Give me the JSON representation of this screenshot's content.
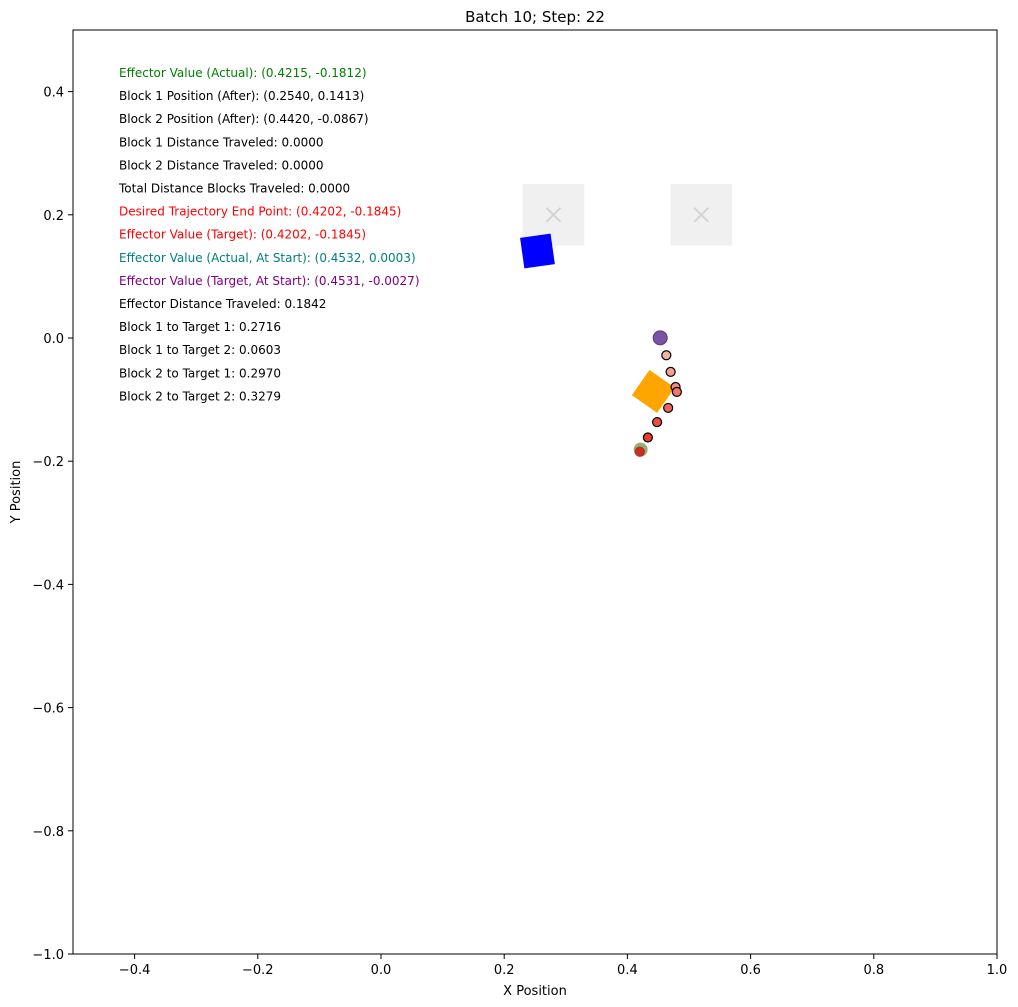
{
  "chart_data": {
    "type": "scatter",
    "title": "Batch 10; Step: 22",
    "xlabel": "X Position",
    "ylabel": "Y Position",
    "xlim": [
      -0.5,
      1.0
    ],
    "ylim": [
      -1.0,
      0.5
    ],
    "xticks": [
      -0.4,
      -0.2,
      0.0,
      0.2,
      0.4,
      0.6,
      0.8,
      1.0
    ],
    "xtick_labels": [
      "−0.4",
      "−0.2",
      "0.0",
      "0.2",
      "0.4",
      "0.6",
      "0.8",
      "1.0"
    ],
    "yticks": [
      0.4,
      0.2,
      0.0,
      -0.2,
      -0.4,
      -0.6,
      -0.8,
      -1.0
    ],
    "ytick_labels": [
      "0.4",
      "0.2",
      "0.0",
      "−0.2",
      "−0.4",
      "−0.6",
      "−0.8",
      "−1.0"
    ],
    "grid": false,
    "annotations": [
      {
        "text": "Effector Value (Actual): (0.4215, -0.1812)",
        "color": "#008000"
      },
      {
        "text": "Block 1 Position (After): (0.2540, 0.1413)",
        "color": "#000000"
      },
      {
        "text": "Block 2 Position (After): (0.4420, -0.0867)",
        "color": "#000000"
      },
      {
        "text": "Block 1 Distance Traveled: 0.0000",
        "color": "#000000"
      },
      {
        "text": "Block 2 Distance Traveled: 0.0000",
        "color": "#000000"
      },
      {
        "text": "Total Distance Blocks Traveled: 0.0000",
        "color": "#000000"
      },
      {
        "text": "Desired Trajectory End Point: (0.4202, -0.1845)",
        "color": "#ff0000"
      },
      {
        "text": "Effector Value (Target): (0.4202, -0.1845)",
        "color": "#ff0000"
      },
      {
        "text": "Effector Value (Actual, At Start): (0.4532, 0.0003)",
        "color": "#008080"
      },
      {
        "text": "Effector Value (Target, At Start): (0.4531, -0.0027)",
        "color": "#800080"
      },
      {
        "text": "Effector Distance Traveled: 0.1842",
        "color": "#000000"
      },
      {
        "text": "Block 1 to Target 1: 0.2716",
        "color": "#000000"
      },
      {
        "text": "Block 1 to Target 2: 0.0603",
        "color": "#000000"
      },
      {
        "text": "Block 2 to Target 1: 0.2970",
        "color": "#000000"
      },
      {
        "text": "Block 2 to Target 2: 0.3279",
        "color": "#000000"
      }
    ],
    "targets": [
      {
        "x": 0.28,
        "y": 0.2,
        "width": 0.1,
        "height": 0.1,
        "color": "#f0f0f0",
        "marker_color": "#d3d3d3"
      },
      {
        "x": 0.52,
        "y": 0.2,
        "width": 0.1,
        "height": 0.1,
        "color": "#f0f0f0",
        "marker_color": "#d3d3d3"
      }
    ],
    "blocks": [
      {
        "x": 0.254,
        "y": 0.1413,
        "size": 0.05,
        "angle_deg": -8,
        "color": "#0000ff"
      },
      {
        "x": 0.442,
        "y": -0.0867,
        "size": 0.05,
        "angle_deg": 35,
        "color": "#ffa500"
      }
    ],
    "trajectory": [
      {
        "x": 0.4632,
        "y": -0.028
      },
      {
        "x": 0.4702,
        "y": -0.055
      },
      {
        "x": 0.4782,
        "y": -0.0795
      },
      {
        "x": 0.4803,
        "y": -0.0875
      },
      {
        "x": 0.4662,
        "y": -0.1135
      },
      {
        "x": 0.4482,
        "y": -0.1365
      },
      {
        "x": 0.4332,
        "y": -0.1615
      },
      {
        "x": 0.4202,
        "y": -0.1845
      }
    ],
    "trajectory_color_start": "#f4b4a4",
    "trajectory_color_end": "#e8271b",
    "effector_start": {
      "x": 0.4532,
      "y": 0.0003,
      "color": "#7b52a6"
    },
    "effector_actual": {
      "x": 0.4215,
      "y": -0.1812,
      "color": "#6a9a4a"
    },
    "effector_target": {
      "x": 0.4202,
      "y": -0.1845,
      "color": "#dd1c1c"
    }
  }
}
